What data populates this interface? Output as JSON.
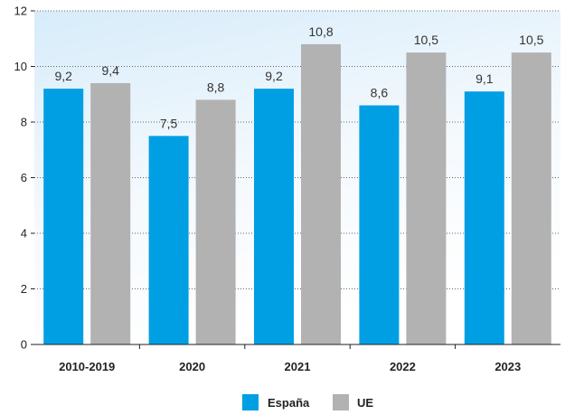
{
  "chart_data": {
    "type": "bar",
    "categories": [
      "2010-2019",
      "2020",
      "2021",
      "2022",
      "2023"
    ],
    "series": [
      {
        "name": "España",
        "values": [
          9.2,
          7.5,
          9.2,
          8.6,
          9.1
        ],
        "labels": [
          "9,2",
          "7,5",
          "9,2",
          "8,6",
          "9,1"
        ],
        "color": "#009fe3"
      },
      {
        "name": "UE",
        "values": [
          9.4,
          8.8,
          10.8,
          10.5,
          10.5
        ],
        "labels": [
          "9,4",
          "8,8",
          "10,8",
          "10,5",
          "10,5"
        ],
        "color": "#b2b2b2"
      }
    ],
    "y_ticks": [
      "0",
      "2",
      "4",
      "6",
      "8",
      "10",
      "12"
    ],
    "ylim": [
      0,
      12
    ],
    "grid": true,
    "legend": "bottom-center",
    "title": "",
    "xlabel": "",
    "ylabel": ""
  }
}
